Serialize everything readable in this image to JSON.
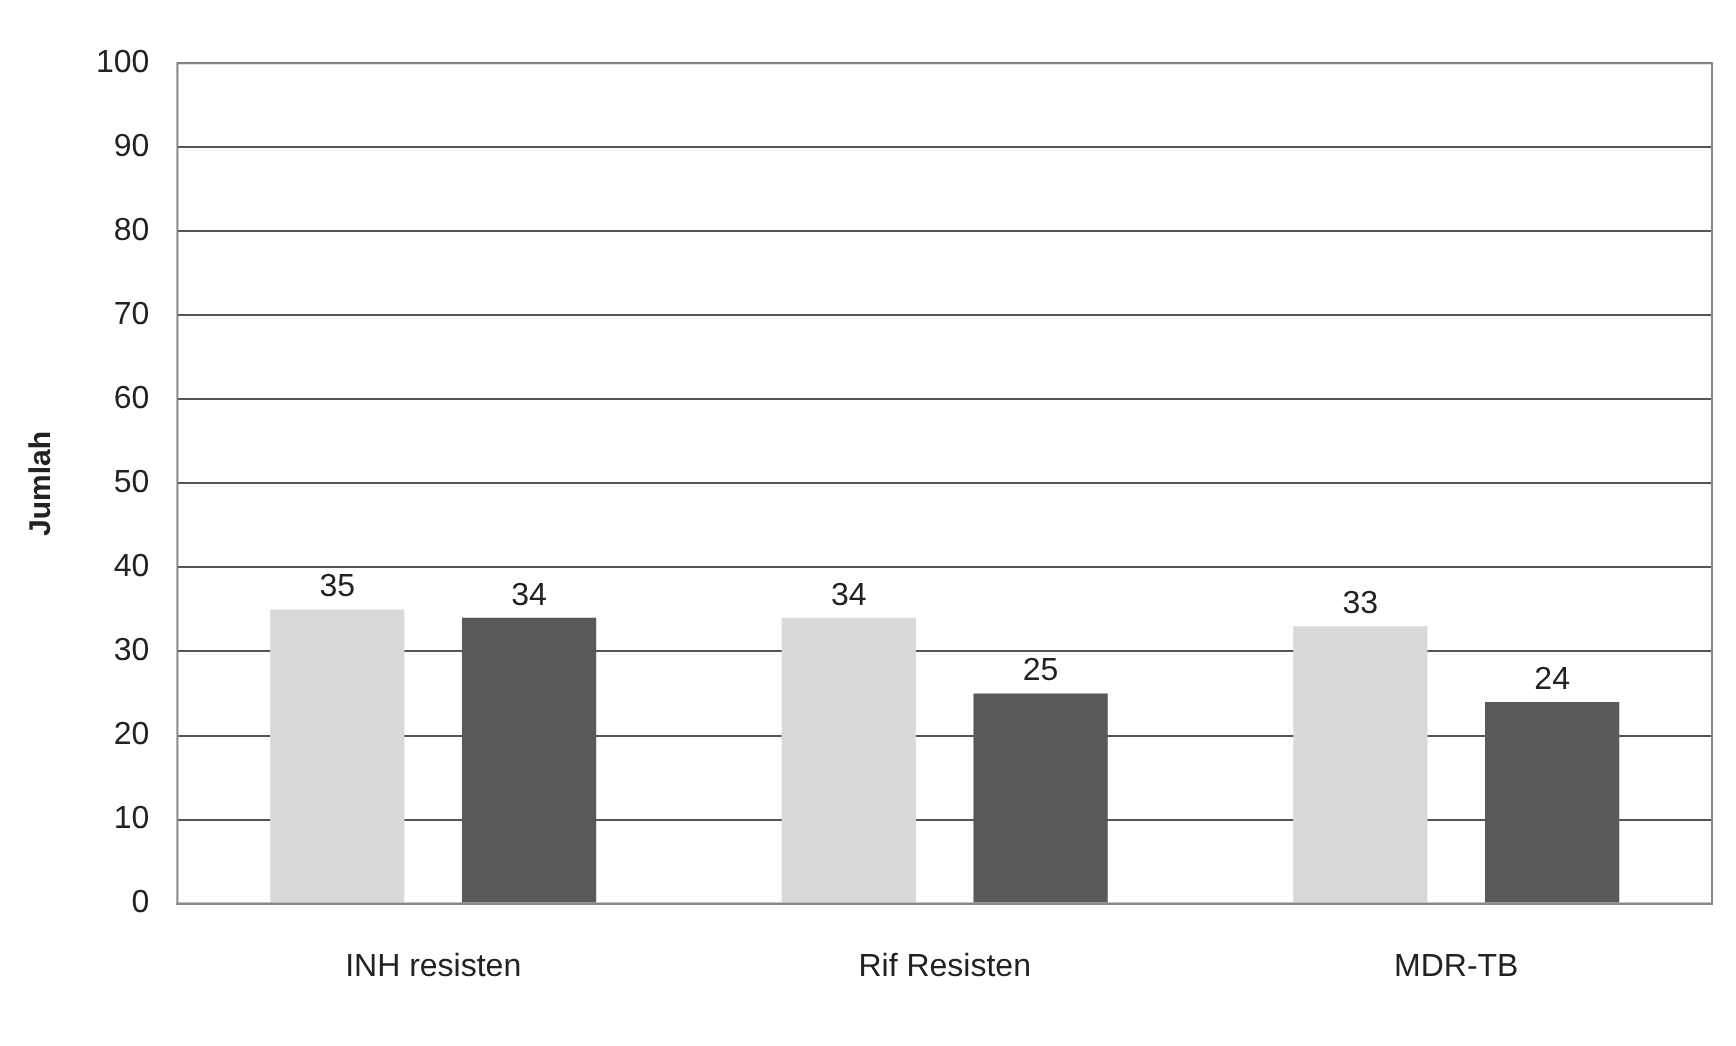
{
  "chart_data": {
    "type": "bar",
    "ylabel": "Jumlah",
    "categories": [
      "INH resisten",
      "Rif Resisten",
      "MDR-TB"
    ],
    "series": [
      {
        "color": "#d9d9d9",
        "values": [
          35,
          34,
          33
        ]
      },
      {
        "color": "#595959",
        "values": [
          34,
          25,
          24
        ]
      }
    ],
    "ylim": [
      0,
      100
    ],
    "yticks": [
      0,
      10,
      20,
      30,
      40,
      50,
      60,
      70,
      80,
      90,
      100
    ],
    "grid": "y",
    "data_labels": true,
    "legend": false
  }
}
